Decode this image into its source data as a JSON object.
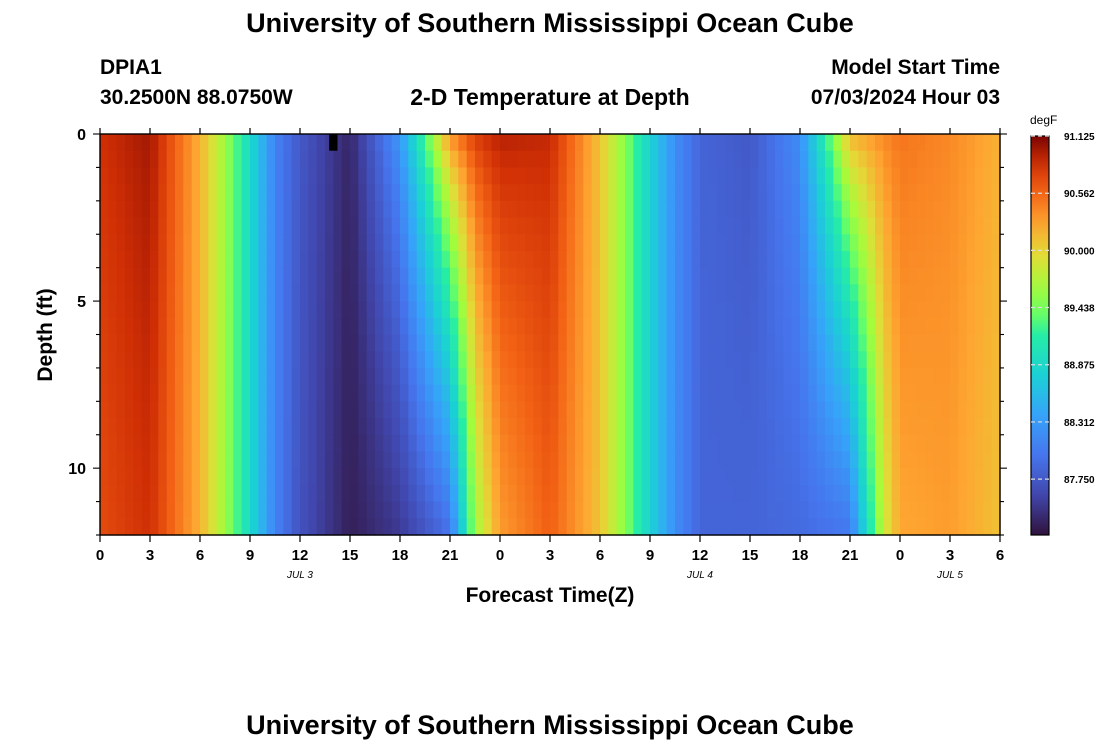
{
  "page": {
    "title": "University of Southern Mississippi Ocean Cube",
    "footer_title": "University of Southern Mississippi Ocean Cube"
  },
  "header": {
    "station": "DPIA1",
    "coords": "30.2500N  88.0750W",
    "subtitle": "2-D Temperature at Depth",
    "model_label": "Model Start Time",
    "model_time": "07/03/2024 Hour 03"
  },
  "chart_data": {
    "type": "heatmap",
    "title": "2-D Temperature at Depth",
    "xlabel": "Forecast Time(Z)",
    "ylabel": "Depth (ft)",
    "x_range_hours": [
      0,
      54
    ],
    "ylim": [
      0,
      12
    ],
    "y_inverted": true,
    "x_ticks": [
      {
        "hour": 0,
        "label": "0"
      },
      {
        "hour": 3,
        "label": "3"
      },
      {
        "hour": 6,
        "label": "6"
      },
      {
        "hour": 9,
        "label": "9"
      },
      {
        "hour": 12,
        "label": "12"
      },
      {
        "hour": 15,
        "label": "15"
      },
      {
        "hour": 18,
        "label": "18"
      },
      {
        "hour": 21,
        "label": "21"
      },
      {
        "hour": 24,
        "label": "0"
      },
      {
        "hour": 27,
        "label": "3"
      },
      {
        "hour": 30,
        "label": "6"
      },
      {
        "hour": 33,
        "label": "9"
      },
      {
        "hour": 36,
        "label": "12"
      },
      {
        "hour": 39,
        "label": "15"
      },
      {
        "hour": 42,
        "label": "18"
      },
      {
        "hour": 45,
        "label": "21"
      },
      {
        "hour": 48,
        "label": "0"
      },
      {
        "hour": 51,
        "label": "3"
      },
      {
        "hour": 54,
        "label": "6"
      }
    ],
    "date_labels": [
      {
        "hour": 12,
        "label": "JUL 3"
      },
      {
        "hour": 36,
        "label": "JUL 4"
      },
      {
        "hour": 51,
        "label": "JUL 5"
      }
    ],
    "y_ticks": [
      {
        "value": 0,
        "label": "0"
      },
      {
        "value": 5,
        "label": "5"
      },
      {
        "value": 10,
        "label": "10"
      }
    ],
    "colorbar": {
      "unit": "degF",
      "min": 87.2,
      "max": 91.125,
      "labels": [
        91.125,
        90.562,
        90.0,
        89.438,
        88.875,
        88.312,
        87.75
      ],
      "label_text": [
        "91.125",
        "90.562",
        "90.000",
        "89.438",
        "88.875",
        "88.312",
        "87.750"
      ],
      "colormap": "turbo"
    },
    "profiles": {
      "hours": [
        0,
        3,
        6,
        7.5,
        9,
        10.5,
        12,
        15,
        18,
        21,
        22.5,
        24,
        27,
        30,
        31.5,
        33,
        34.5,
        36,
        39,
        42,
        45,
        47,
        48,
        51,
        54
      ],
      "surface_degF": [
        90.85,
        91.0,
        90.2,
        89.6,
        88.9,
        88.1,
        87.75,
        87.35,
        88.3,
        90.4,
        90.8,
        90.95,
        90.9,
        90.1,
        89.5,
        88.8,
        88.2,
        87.85,
        87.75,
        88.2,
        90.2,
        90.4,
        90.5,
        90.4,
        90.2
      ],
      "bottom_degF": [
        90.7,
        90.85,
        90.2,
        89.6,
        88.9,
        88.1,
        87.7,
        87.3,
        87.5,
        87.95,
        89.6,
        90.3,
        90.6,
        90.1,
        89.5,
        88.8,
        88.2,
        87.85,
        87.85,
        87.9,
        88.0,
        89.8,
        90.25,
        90.3,
        90.1
      ]
    },
    "missing_cell": {
      "hour": 14,
      "depth_range": [
        0,
        0.5
      ]
    }
  }
}
